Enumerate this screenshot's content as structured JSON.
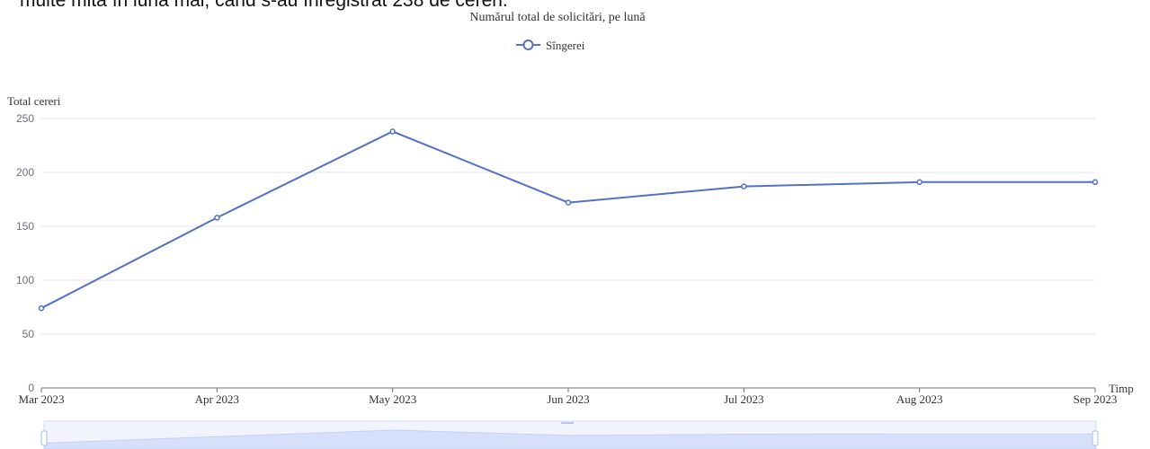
{
  "page": {
    "caption_text": "multe mită în luna mai, când s-au înregistrat 238 de cereri."
  },
  "chart_data": {
    "type": "line",
    "title": "Numărul total de solicitări, pe lună",
    "legend": {
      "position": "top-center"
    },
    "xlabel": "Timp",
    "ylabel": "Total cereri",
    "categories": [
      "Mar 2023",
      "Apr 2023",
      "May 2023",
      "Jun 2023",
      "Jul 2023",
      "Aug 2023",
      "Sep 2023"
    ],
    "y_ticks": [
      0,
      50,
      100,
      150,
      200,
      250
    ],
    "ylim": [
      0,
      250
    ],
    "grid": true,
    "series": [
      {
        "name": "Sîngerei",
        "color": "#5470c6",
        "values": [
          74,
          158,
          238,
          172,
          187,
          191,
          191
        ]
      }
    ],
    "data_zoom": {
      "range": [
        0,
        100
      ],
      "fill_color": "#d6e0fa"
    }
  }
}
